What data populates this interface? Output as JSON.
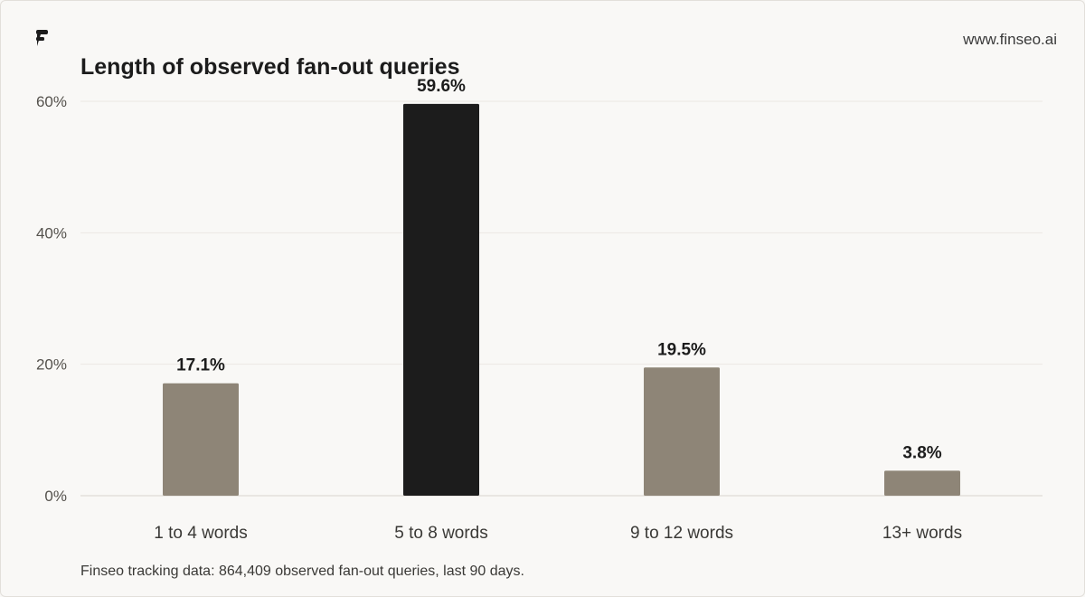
{
  "header": {
    "site": "www.finseo.ai"
  },
  "footer": {
    "source": "Finseo tracking data: 864,409 observed fan-out queries, last 90 days."
  },
  "colors": {
    "background": "#f9f8f6",
    "bar_default": "#8e8577",
    "bar_highlight": "#1c1c1c",
    "grid": "#ebe8e3",
    "text": "#1c1c1c"
  },
  "chart_data": {
    "type": "bar",
    "title": "Length of observed fan-out queries",
    "xlabel": "",
    "ylabel": "",
    "categories": [
      "1 to 4 words",
      "5 to 8 words",
      "9 to 12 words",
      "13+ words"
    ],
    "values": [
      17.1,
      59.6,
      19.5,
      3.8
    ],
    "data_labels": [
      "17.1%",
      "59.6%",
      "19.5%",
      "3.8%"
    ],
    "highlight_index": 1,
    "ylim": [
      0,
      60
    ],
    "yticks": [
      0,
      20,
      40,
      60
    ],
    "ytick_labels": [
      "0%",
      "20%",
      "40%",
      "60%"
    ],
    "grid": true,
    "legend": "none"
  }
}
